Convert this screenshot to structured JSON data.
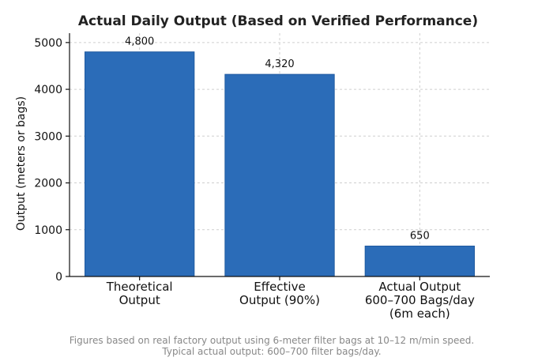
{
  "chart_data": {
    "type": "bar",
    "title": "Actual Daily Output (Based on Verified Performance)",
    "ylabel": "Output (meters or bags)",
    "xlabel": "",
    "ylim": [
      0,
      5200
    ],
    "yticks": [
      0,
      1000,
      2000,
      3000,
      4000,
      5000
    ],
    "grid": true,
    "bar_color": "#2b6cb8",
    "categories": [
      [
        "Theoretical",
        "Output"
      ],
      [
        "Effective",
        "Output (90%)"
      ],
      [
        "Actual Output",
        "600–700 Bags/day",
        "(6m each)"
      ]
    ],
    "values": [
      4800,
      4320,
      650
    ],
    "data_labels": [
      "4,800",
      "4,320",
      "650"
    ]
  },
  "footnote": [
    "Figures based on real factory output using 6-meter filter bags at 10–12 m/min speed.",
    "Typical actual output: 600–700 filter bags/day."
  ]
}
